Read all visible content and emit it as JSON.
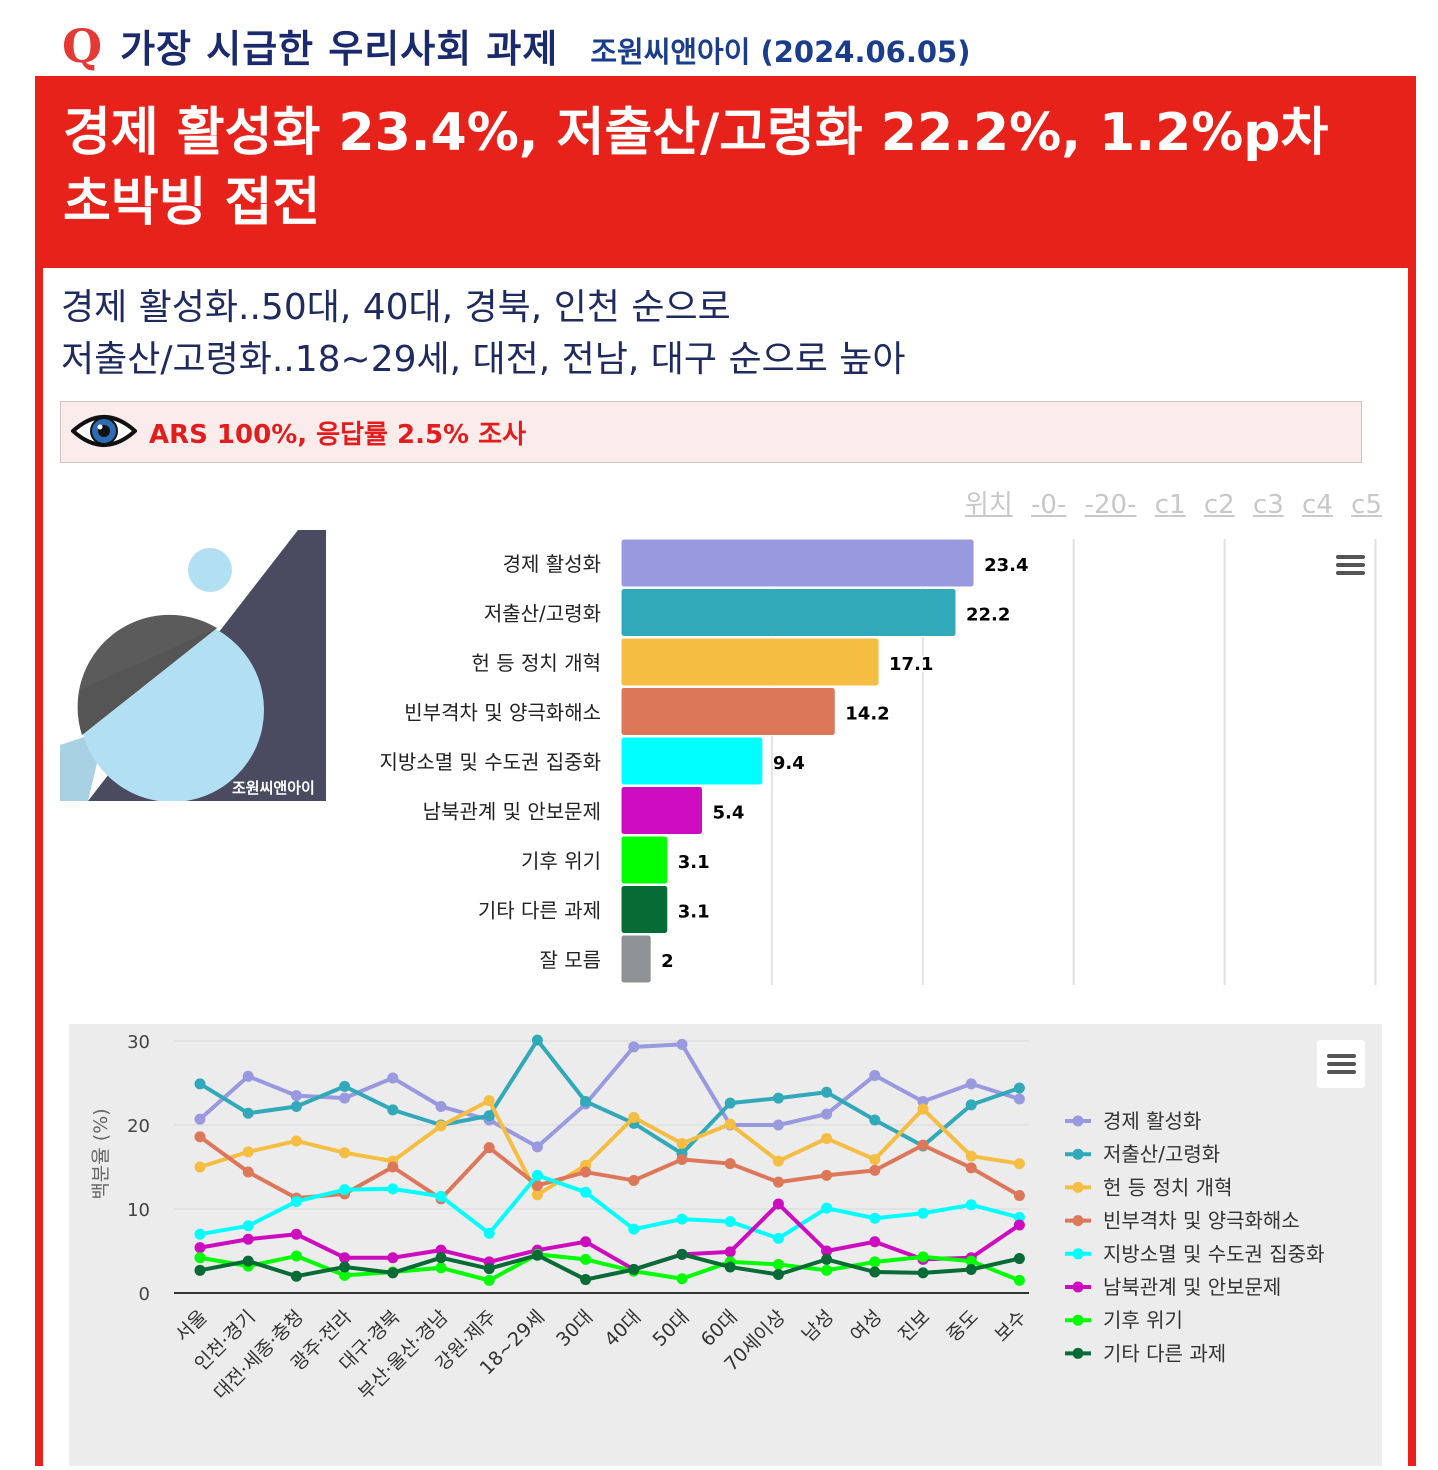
{
  "header": {
    "q_letter": "Q",
    "title": "가장 시급한 우리사회 과제",
    "source": "조원씨앤아이 (2024.06.05)"
  },
  "headline": "경제 활성화 23.4%, 저출산/고령화 22.2%, 1.2%p차 초박빙 접전",
  "subheadline": {
    "line1": "경제 활성화..50대, 40대, 경북, 인천 순으로",
    "line2": "저출산/고령화..18~29세, 대전, 전남, 대구 순으로 높아"
  },
  "note": {
    "icon": "eye-icon",
    "text": "ARS 100%, 응답률 2.5% 조사"
  },
  "position_links": [
    "위치",
    "-0-",
    "-20-",
    "c1",
    "c2",
    "c3",
    "c4",
    "c5"
  ],
  "logo": {
    "text": "조원씨앤아이"
  },
  "colors": {
    "accent_red": "#e7221b",
    "title_navy": "#1a2a6c"
  },
  "chart_data": [
    {
      "type": "bar",
      "orientation": "horizontal",
      "categories": [
        "경제 활성화",
        "저출산/고령화",
        "헌 등 정치 개혁",
        "빈부격차 및 양극화해소",
        "지방소멸 및 수도권 집중화",
        "남북관계 및 안보문제",
        "기후 위기",
        "기타 다른 과제",
        "잘 모름"
      ],
      "values": [
        23.4,
        22.2,
        17.1,
        14.2,
        9.4,
        5.4,
        3.1,
        3.1,
        2
      ],
      "colors": [
        "#9999e0",
        "#31a9b8",
        "#f5bd41",
        "#dd775a",
        "#00ffff",
        "#cc0cbe",
        "#00ff00",
        "#066b34",
        "#8e9294"
      ],
      "xlim": [
        0,
        50
      ],
      "grid": true,
      "data_labels": true
    },
    {
      "type": "line",
      "x": [
        "서울",
        "인천·경기",
        "대전·세종·충청",
        "광주·전라",
        "대구·경북",
        "부산·울산·경남",
        "강원·제주",
        "18~29세",
        "30대",
        "40대",
        "50대",
        "60대",
        "70세이상",
        "남성",
        "여성",
        "진보",
        "중도",
        "보수"
      ],
      "ylabel": "백분율 (%)",
      "ylim": [
        0,
        30
      ],
      "yticks": [
        0,
        10,
        20,
        30
      ],
      "legend": "right",
      "grid": true,
      "series": [
        {
          "name": "경제 활성화",
          "color": "#9999e0",
          "values": [
            20.7,
            25.8,
            23.5,
            23.2,
            25.6,
            22.2,
            20.6,
            17.4,
            22.5,
            29.3,
            29.6,
            20.0,
            20.0,
            21.3,
            25.9,
            22.8,
            24.9,
            23.1
          ]
        },
        {
          "name": "저출산/고령화",
          "color": "#31a9b8",
          "values": [
            24.9,
            21.4,
            22.2,
            24.6,
            21.8,
            20.0,
            21.1,
            30.1,
            22.8,
            20.2,
            16.6,
            22.6,
            23.2,
            23.9,
            20.6,
            17.5,
            22.4,
            24.4
          ]
        },
        {
          "name": "헌 등 정치 개혁",
          "color": "#f5bd41",
          "values": [
            15.0,
            16.8,
            18.1,
            16.7,
            15.7,
            19.9,
            22.9,
            11.7,
            15.2,
            20.9,
            17.8,
            20.1,
            15.7,
            18.4,
            15.9,
            21.9,
            16.3,
            15.4
          ]
        },
        {
          "name": "빈부격차 및 양극화해소",
          "color": "#dd775a",
          "values": [
            18.6,
            14.4,
            11.3,
            11.8,
            15.0,
            11.2,
            17.3,
            12.8,
            14.4,
            13.4,
            15.9,
            15.4,
            13.2,
            14.0,
            14.6,
            17.6,
            14.9,
            11.6
          ]
        },
        {
          "name": "지방소멸 및 수도권 집중화",
          "color": "#00ffff",
          "values": [
            7.0,
            8.0,
            10.9,
            12.3,
            12.4,
            11.5,
            7.1,
            14.0,
            12.0,
            7.6,
            8.8,
            8.5,
            6.5,
            10.1,
            8.9,
            9.5,
            10.5,
            9.0
          ]
        },
        {
          "name": "남북관계 및 안보문제",
          "color": "#cc0cbe",
          "values": [
            5.4,
            6.4,
            7.0,
            4.2,
            4.2,
            5.1,
            3.7,
            5.1,
            6.1,
            2.8,
            4.6,
            4.9,
            10.6,
            5.0,
            6.1,
            4.0,
            4.2,
            8.1
          ]
        },
        {
          "name": "기후 위기",
          "color": "#00ff00",
          "values": [
            4.2,
            3.2,
            4.4,
            2.1,
            2.5,
            3.0,
            1.5,
            4.6,
            4.0,
            2.6,
            1.7,
            3.7,
            3.4,
            2.7,
            3.7,
            4.3,
            3.8,
            1.5
          ]
        },
        {
          "name": "기타 다른 과제",
          "color": "#066b34",
          "values": [
            2.7,
            3.8,
            2.0,
            3.1,
            2.4,
            4.2,
            2.9,
            4.5,
            1.6,
            2.8,
            4.6,
            3.1,
            2.2,
            4.0,
            2.5,
            2.4,
            2.8,
            4.1
          ]
        }
      ]
    }
  ]
}
